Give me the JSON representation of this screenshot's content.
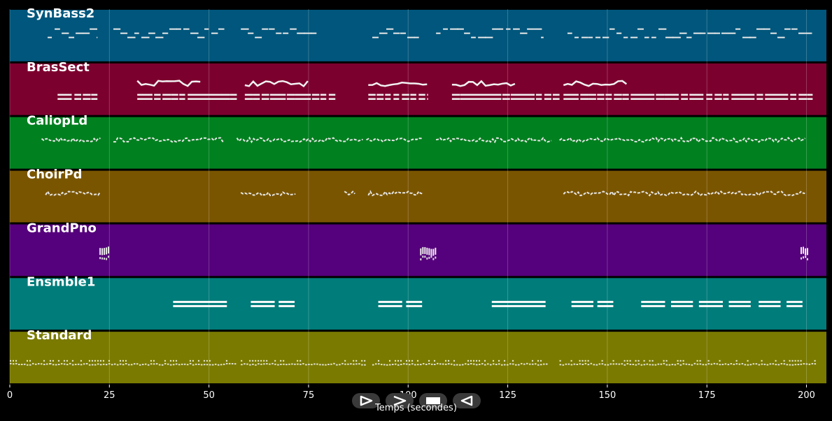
{
  "chart_data": {
    "type": "pianoroll",
    "xlabel": "Temps (secondes)",
    "xlim": [
      0,
      205
    ],
    "xticks": [
      0,
      25,
      50,
      75,
      100,
      125,
      150,
      175,
      200
    ],
    "grid": true,
    "tracks": [
      {
        "name": "SynBass2",
        "color": "#00567c",
        "style": "dash",
        "segments": [
          [
            9.5,
            22
          ],
          [
            26,
            54
          ],
          [
            58,
            77
          ],
          [
            91,
            103
          ],
          [
            107,
            134
          ],
          [
            140,
            201.5
          ]
        ]
      },
      {
        "name": "BrasSect",
        "color": "#7c002e",
        "style": "brass",
        "segments": [
          [
            12,
            22
          ],
          [
            32,
            57
          ],
          [
            59,
            82
          ],
          [
            90,
            105
          ],
          [
            111,
            138
          ],
          [
            139,
            202
          ]
        ]
      },
      {
        "name": "CaliopLd",
        "color": "#00801f",
        "style": "melody",
        "segments": [
          [
            8,
            23
          ],
          [
            26,
            54
          ],
          [
            57,
            89
          ],
          [
            89.5,
            104
          ],
          [
            107,
            136
          ],
          [
            138,
            200
          ]
        ]
      },
      {
        "name": "ChoirPd",
        "color": "#7a5500",
        "style": "melody",
        "segments": [
          [
            9,
            23
          ],
          [
            58,
            72
          ],
          [
            84,
            87
          ],
          [
            90,
            104
          ],
          [
            139,
            200
          ]
        ]
      },
      {
        "name": "GrandPno",
        "color": "#55007c",
        "style": "chord",
        "segments": [
          [
            22.5,
            25
          ],
          [
            103,
            107
          ],
          [
            198.5,
            200.5
          ]
        ]
      },
      {
        "name": "Ensmble1",
        "color": "#007c7a",
        "style": "block",
        "segments": [
          [
            41,
            54.5
          ],
          [
            60.5,
            66.5
          ],
          [
            67.5,
            71.5
          ],
          [
            92.5,
            98.5
          ],
          [
            99.5,
            103.5
          ],
          [
            121,
            134.5
          ],
          [
            141,
            146.5
          ],
          [
            147.5,
            151.5
          ],
          [
            158.5,
            164.5
          ],
          [
            166,
            171.5
          ],
          [
            173,
            179
          ],
          [
            180.5,
            186
          ],
          [
            188,
            193.5
          ],
          [
            195,
            199
          ]
        ]
      },
      {
        "name": "Standard",
        "color": "#7a7a00",
        "style": "drums",
        "segments": [
          [
            0,
            10
          ],
          [
            10,
            57
          ],
          [
            58,
            89
          ],
          [
            91,
            135
          ],
          [
            138,
            202
          ]
        ]
      }
    ]
  }
}
